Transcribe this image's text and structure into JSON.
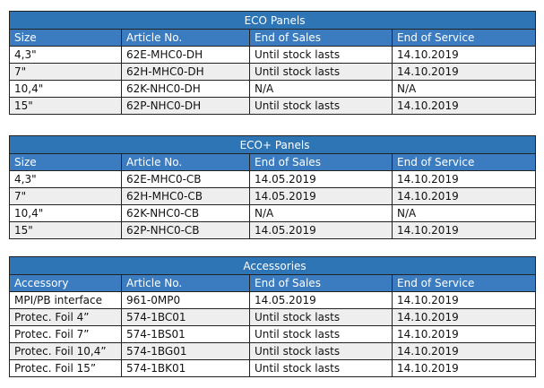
{
  "tables": [
    {
      "title": "ECO Panels",
      "columns": [
        "Size",
        "Article No.",
        "End of Sales",
        "End of Service"
      ],
      "rows": [
        [
          "4,3\"",
          "62E-MHC0-DH",
          "Until stock lasts",
          "14.10.2019"
        ],
        [
          "7\"",
          "62H-MHC0-DH",
          "Until stock lasts",
          "14.10.2019"
        ],
        [
          "10,4\"",
          "62K-NHC0-DH",
          "N/A",
          "N/A"
        ],
        [
          "15\"",
          "62P-NHC0-DH",
          "Until stock lasts",
          "14.10.2019"
        ]
      ]
    },
    {
      "title": "ECO+ Panels",
      "columns": [
        "Size",
        "Article No.",
        "End of Sales",
        "End of Service"
      ],
      "rows": [
        [
          "4,3\"",
          "62E-MHC0-CB",
          "14.05.2019",
          "14.10.2019"
        ],
        [
          "7\"",
          "62H-MHC0-CB",
          "14.05.2019",
          "14.10.2019"
        ],
        [
          "10,4\"",
          "62K-NHC0-CB",
          "N/A",
          "N/A"
        ],
        [
          "15\"",
          "62P-NHC0-CB",
          "14.05.2019",
          "14.10.2019"
        ]
      ]
    },
    {
      "title": "Accessories",
      "columns": [
        "Accessory",
        "Article No.",
        "End of Sales",
        "End of Service"
      ],
      "rows": [
        [
          "MPI/PB interface",
          "961-0MP0",
          "14.05.2019",
          "14.10.2019"
        ],
        [
          "Protec. Foil 4”",
          "574-1BC01",
          "Until stock lasts",
          "14.10.2019"
        ],
        [
          "Protec. Foil 7”",
          "574-1BS01",
          "Until stock lasts",
          "14.10.2019"
        ],
        [
          "Protec. Foil 10,4”",
          "574-1BG01",
          "Until stock lasts",
          "14.10.2019"
        ],
        [
          "Protec. Foil 15”",
          "574-1BK01",
          "Until stock lasts",
          "14.10.2019"
        ]
      ]
    }
  ]
}
